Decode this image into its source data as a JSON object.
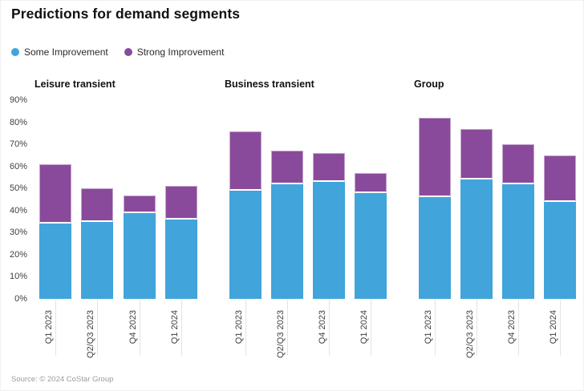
{
  "card": {
    "title": "Predictions for demand segments",
    "source": "Source: © 2024 CoStar Group"
  },
  "legend": {
    "items": [
      {
        "label": "Some Improvement",
        "color": "#41a4da"
      },
      {
        "label": "Strong Improvement",
        "color": "#8a4a9b"
      }
    ]
  },
  "chart_data": {
    "type": "bar",
    "stacked": true,
    "title": "Predictions for demand segments",
    "legend_position": "top-left",
    "grid": false,
    "unit": "%",
    "ylim": [
      0,
      90
    ],
    "y_ticks": [
      "90%",
      "80%",
      "70%",
      "60%",
      "50%",
      "40%",
      "30%",
      "20%",
      "10%",
      "0%"
    ],
    "categories": [
      "Q1 2023",
      "Q2/Q3 2023",
      "Q4 2023",
      "Q1 2024"
    ],
    "groups": [
      {
        "title": "Leisure transient",
        "series": [
          {
            "name": "Some Improvement",
            "color": "#41a4da",
            "values": [
              34,
              35,
              39,
              36
            ]
          },
          {
            "name": "Strong Improvement",
            "color": "#8a4a9b",
            "values": [
              27,
              15,
              8,
              15
            ]
          }
        ]
      },
      {
        "title": "Business transient",
        "series": [
          {
            "name": "Some Improvement",
            "color": "#41a4da",
            "values": [
              49,
              52,
              53,
              48
            ]
          },
          {
            "name": "Strong Improvement",
            "color": "#8a4a9b",
            "values": [
              27,
              15,
              13,
              9
            ]
          }
        ]
      },
      {
        "title": "Group",
        "series": [
          {
            "name": "Some Improvement",
            "color": "#41a4da",
            "values": [
              46,
              54,
              52,
              44
            ]
          },
          {
            "name": "Strong Improvement",
            "color": "#8a4a9b",
            "values": [
              36,
              23,
              18,
              21
            ]
          }
        ]
      }
    ]
  }
}
